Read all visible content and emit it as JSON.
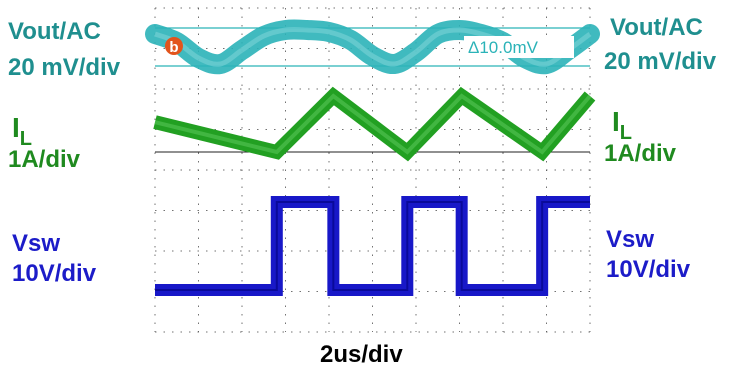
{
  "chart_data": {
    "type": "line",
    "title": "",
    "xlabel": "2us/div",
    "colors": {
      "vout": "#2bb3b8",
      "il": "#22a022",
      "vsw": "#1818c8",
      "grid": "#444444"
    },
    "time_per_div_us": 2,
    "x_range_us": [
      0,
      20
    ],
    "cursor_label": "Δ10.0mV",
    "vout_marker": "b",
    "labels": {
      "vout": {
        "name": "Vout/AC",
        "scale": "20 mV/div"
      },
      "il": {
        "name": "I",
        "sub": "L",
        "scale": "1A/div"
      },
      "vsw": {
        "name": "Vsw",
        "scale": "10V/div"
      }
    },
    "series": [
      {
        "name": "Vout/AC",
        "units": "mV",
        "x": [
          0,
          1,
          2,
          3,
          4,
          5,
          6,
          7,
          8,
          9,
          10,
          11,
          12,
          13,
          14,
          15,
          16,
          17,
          18,
          19,
          20
        ],
        "values": [
          6,
          2,
          -6,
          -9,
          -2,
          5,
          8,
          8,
          7,
          3,
          -5,
          -9,
          -3,
          6,
          8,
          6,
          2,
          -6,
          -9,
          -2,
          6
        ]
      },
      {
        "name": "IL",
        "units": "A",
        "x": [
          0,
          5.6,
          8.2,
          11.6,
          14.1,
          17.8,
          20
        ],
        "values": [
          0.85,
          0.05,
          1.55,
          0.05,
          1.55,
          0.05,
          1.55
        ]
      },
      {
        "name": "Vsw",
        "units": "V",
        "x": [
          0,
          5.6,
          5.6,
          8.2,
          8.2,
          11.6,
          11.6,
          14.1,
          14.1,
          17.8,
          17.8,
          20
        ],
        "values": [
          0,
          0,
          22,
          22,
          0,
          0,
          22,
          22,
          0,
          0,
          22,
          22
        ]
      }
    ]
  }
}
